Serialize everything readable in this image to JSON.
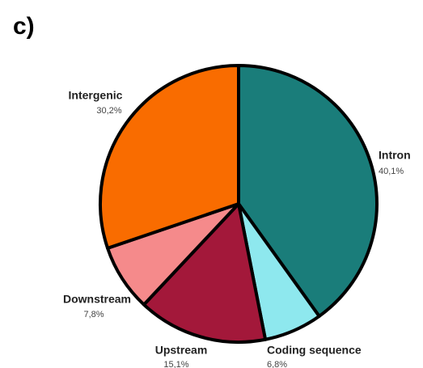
{
  "chart_data": {
    "type": "pie",
    "title": "c)",
    "categories": [
      "Intron",
      "Coding sequence",
      "Upstream",
      "Downstream",
      "Intergenic"
    ],
    "values": [
      40.1,
      6.8,
      15.1,
      7.8,
      30.2
    ],
    "value_labels": [
      "40,1%",
      "6,8%",
      "15,1%",
      "7,8%",
      "30,2%"
    ],
    "colors": [
      "#1a7d7a",
      "#8ee8ee",
      "#a3183a",
      "#f58a8b",
      "#f96c00"
    ]
  }
}
